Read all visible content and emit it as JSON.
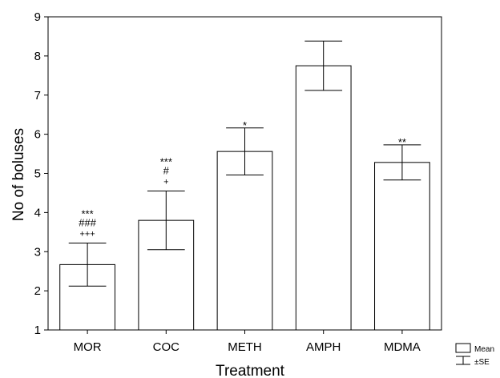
{
  "chart_data": {
    "type": "bar",
    "xlabel": "Treatment",
    "ylabel": "No of boluses",
    "ylim": [
      1,
      9
    ],
    "yticks": [
      1,
      2,
      3,
      4,
      5,
      6,
      7,
      8,
      9
    ],
    "grid": false,
    "legend": {
      "position": "bottom-right",
      "entries": [
        "Mean",
        "±SE"
      ]
    },
    "categories": [
      "MOR",
      "COC",
      "METH",
      "AMPH",
      "MDMA"
    ],
    "series": [
      {
        "values": [
          2.67,
          3.8,
          5.56,
          7.75,
          5.28
        ],
        "error": [
          0.55,
          0.75,
          0.6,
          0.63,
          0.45
        ],
        "annotations": [
          [
            "***",
            "###",
            "+++"
          ],
          [
            "***",
            "#",
            "+"
          ],
          [
            "*"
          ],
          [],
          [
            "**"
          ]
        ]
      }
    ],
    "colors": {
      "bar_fill": "#ffffff",
      "stroke": "#000000"
    }
  }
}
